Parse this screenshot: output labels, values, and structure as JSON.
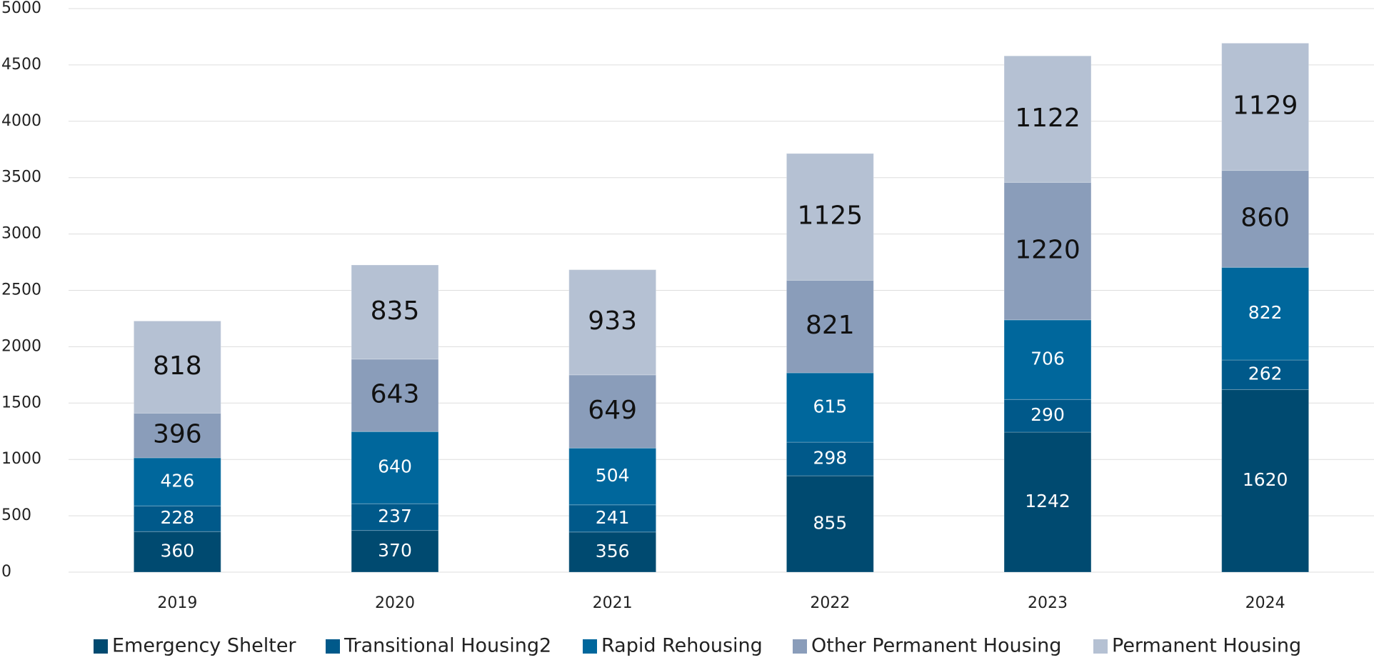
{
  "chart_data": {
    "type": "stacked_bar",
    "categories": [
      "2019",
      "2020",
      "2021",
      "2022",
      "2023",
      "2024"
    ],
    "series": [
      {
        "name": "Emergency Shelter",
        "color": "#004a70",
        "values": [
          360,
          370,
          356,
          855,
          1242,
          1620
        ]
      },
      {
        "name": "Transitional Housing2",
        "color": "#00598a",
        "values": [
          228,
          237,
          241,
          298,
          290,
          262
        ]
      },
      {
        "name": "Rapid Rehousing",
        "color": "#00679c",
        "values": [
          426,
          640,
          504,
          615,
          706,
          822
        ]
      },
      {
        "name": "Other Permanent Housing",
        "color": "#8a9dba",
        "values": [
          396,
          643,
          649,
          821,
          1220,
          860
        ]
      },
      {
        "name": "Permanent Housing",
        "color": "#b5c1d3",
        "values": [
          818,
          835,
          933,
          1125,
          1122,
          1129
        ]
      }
    ],
    "ylim": [
      0,
      5000
    ],
    "yticks": [
      0,
      500,
      1000,
      1500,
      2000,
      2500,
      3000,
      3500,
      4000,
      4500,
      5000
    ],
    "grid": true,
    "legend": "bottom"
  }
}
